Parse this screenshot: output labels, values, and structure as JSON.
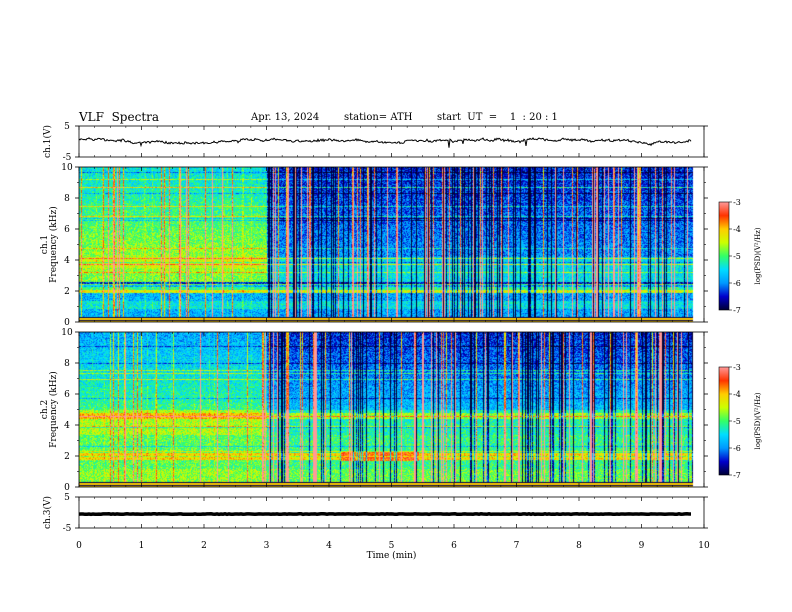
{
  "header": {
    "title": "VLF  Spectra",
    "date": "Apr. 13, 2024",
    "station": "station= ATH",
    "start": "start  UT  =    1  : 20 : 1"
  },
  "chart_data": [
    {
      "type": "line",
      "ylabel": "ch.1(V)",
      "ylim": [
        -5,
        5
      ],
      "yticks": [
        "5",
        "-5"
      ],
      "series": [
        {
          "approx_level": 0.2
        }
      ]
    },
    {
      "type": "heatmap",
      "ylabel_top": "ch.1",
      "ylabel": "Frequency  (kHz)",
      "ylim": [
        0,
        10
      ],
      "yticks": [
        "0",
        "2",
        "4",
        "6",
        "8",
        "10"
      ],
      "xlim": [
        0,
        9.8
      ],
      "regime_change_min": 3.0,
      "colorbar": {
        "label": "log(PSD)(V²/Hz)",
        "ticks": [
          "-3",
          "-4",
          "-5",
          "-6",
          "-7"
        ],
        "range": [
          -7,
          -3
        ]
      }
    },
    {
      "type": "heatmap",
      "ylabel_top": "ch.2",
      "ylabel": "Frequency  (kHz)",
      "ylim": [
        0,
        10
      ],
      "yticks": [
        "0",
        "2",
        "4",
        "6",
        "8",
        "10"
      ],
      "xlim": [
        0,
        9.8
      ],
      "regime_change_min": 3.0,
      "colorbar": {
        "label": "log(PSD)(V²/Hz)",
        "ticks": [
          "-3",
          "-4",
          "-5",
          "-6",
          "-7"
        ],
        "range": [
          -7,
          -3
        ]
      }
    },
    {
      "type": "line",
      "ylabel": "ch.3(V)",
      "ylim": [
        -5,
        5
      ],
      "yticks": [
        "5",
        "-5"
      ],
      "series": [
        {
          "approx_level": -0.5
        }
      ]
    }
  ],
  "xaxis": {
    "label": "Time  (min)",
    "ticks": [
      "0",
      "1",
      "2",
      "3",
      "4",
      "5",
      "6",
      "7",
      "8",
      "9",
      "10"
    ],
    "range": [
      0,
      10
    ]
  },
  "colors": {
    "colormap": [
      "#000033",
      "#0000cc",
      "#0099ff",
      "#00ddff",
      "#33ff66",
      "#ccff00",
      "#ffcc00",
      "#ff3300",
      "#ff9999"
    ]
  }
}
